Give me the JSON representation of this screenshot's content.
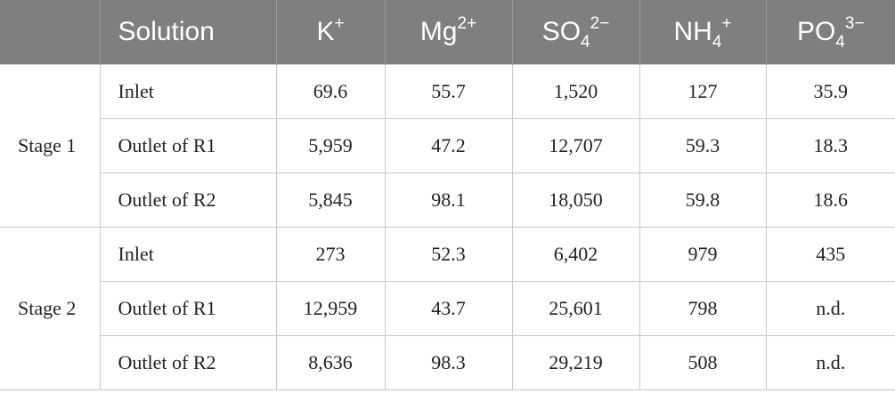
{
  "table": {
    "header": [
      {
        "base": "Solution"
      },
      {
        "base": "K",
        "sup": "+"
      },
      {
        "base": "Mg",
        "sup": "2+"
      },
      {
        "base": "SO",
        "sub": "4",
        "sup": "2−"
      },
      {
        "base": "NH",
        "sub": "4",
        "sup": "+"
      },
      {
        "base": "PO",
        "sub": "4",
        "sup": "3−"
      }
    ],
    "groups": [
      {
        "label": "Stage 1",
        "rows": [
          [
            "Inlet",
            "69.6",
            "55.7",
            "1,520",
            "127",
            "35.9"
          ],
          [
            "Outlet of R1",
            "5,959",
            "47.2",
            "12,707",
            "59.3",
            "18.3"
          ],
          [
            "Outlet of R2",
            "5,845",
            "98.1",
            "18,050",
            "59.8",
            "18.6"
          ]
        ]
      },
      {
        "label": "Stage 2",
        "rows": [
          [
            "Inlet",
            "273",
            "52.3",
            "6,402",
            "979",
            "435"
          ],
          [
            "Outlet of R1",
            "12,959",
            "43.7",
            "25,601",
            "798",
            "n.d."
          ],
          [
            "Outlet of R2",
            "8,636",
            "98.3",
            "29,219",
            "508",
            "n.d."
          ]
        ]
      }
    ]
  }
}
